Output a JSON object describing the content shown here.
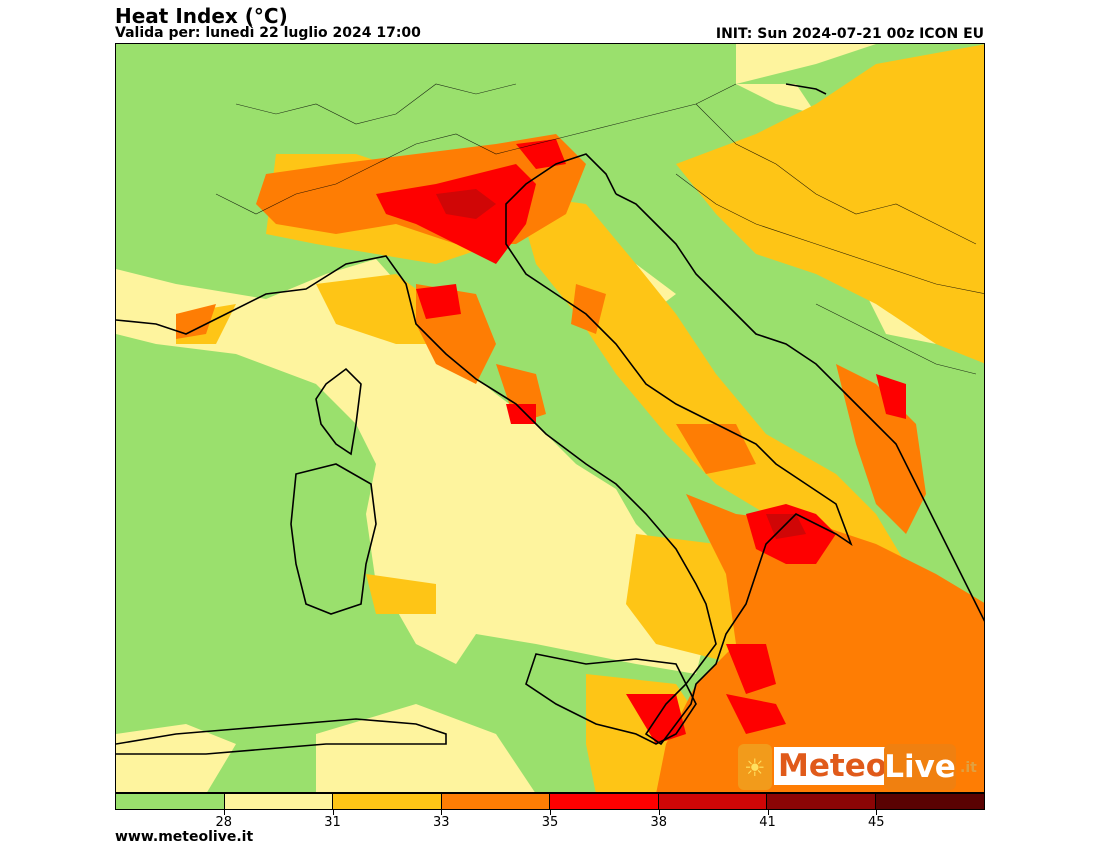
{
  "header": {
    "title": "Heat Index (°C)",
    "valid": "Valida per: lunedì 22 luglio 2024 17:00",
    "init": "INIT: Sun 2024-07-21 00z ICON EU"
  },
  "colorbar": {
    "colors": [
      "#9ae06d",
      "#fef49e",
      "#fec516",
      "#fe7d04",
      "#fe0000",
      "#d00606",
      "#8b0505",
      "#5a0202"
    ],
    "ticks": [
      "28",
      "31",
      "33",
      "35",
      "38",
      "41",
      "45"
    ]
  },
  "logo": {
    "meteo": "Meteo",
    "live": "Live",
    "tld": ".it"
  },
  "footer": {
    "url": "www.meteolive.it"
  }
}
